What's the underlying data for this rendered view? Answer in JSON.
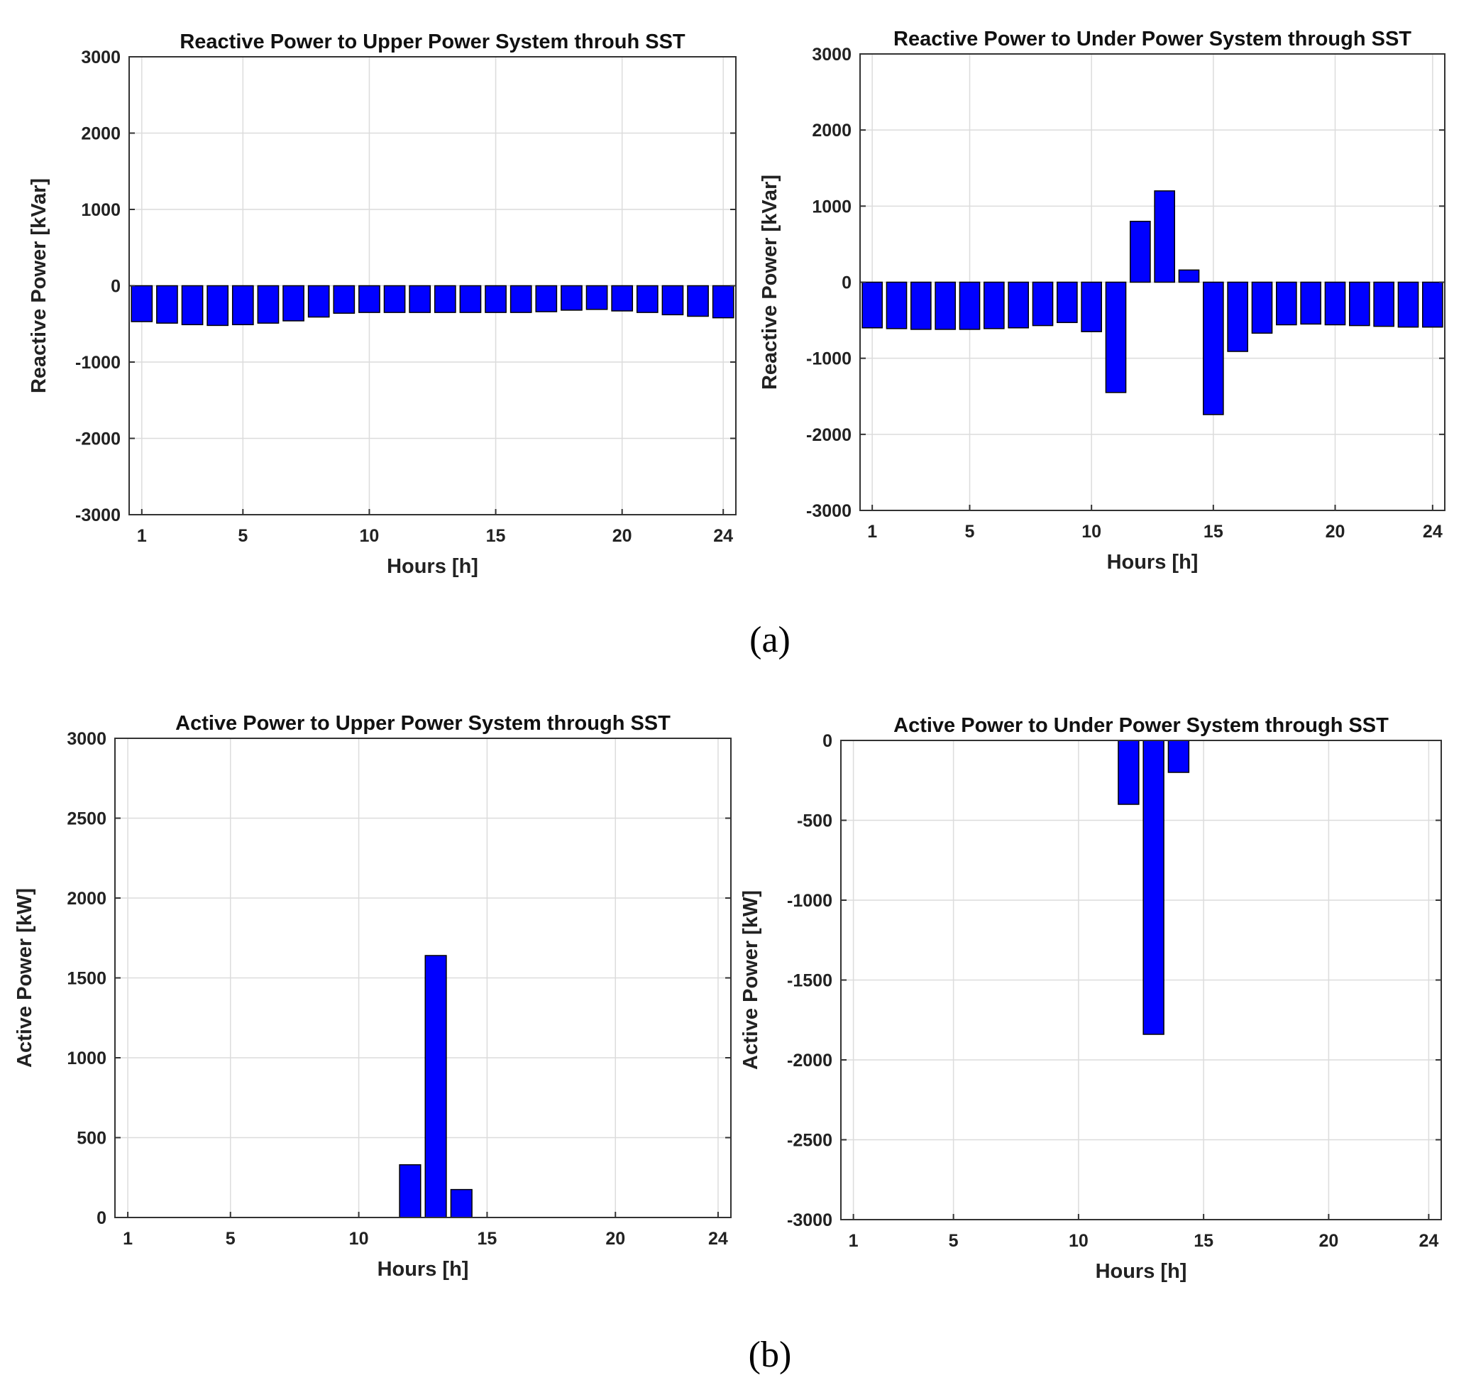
{
  "figure": {
    "captions": [
      "(a)",
      "(b)"
    ],
    "bar_color": "#0000ff"
  },
  "chart_data": [
    {
      "type": "bar",
      "title": "Reactive Power to Upper Power System throuh SST",
      "xlabel": "Hours [h]",
      "ylabel": "Reactive Power [kVar]",
      "categories": [
        1,
        2,
        3,
        4,
        5,
        6,
        7,
        8,
        9,
        10,
        11,
        12,
        13,
        14,
        15,
        16,
        17,
        18,
        19,
        20,
        21,
        22,
        23,
        24
      ],
      "values": [
        -470,
        -490,
        -510,
        -520,
        -510,
        -490,
        -460,
        -410,
        -360,
        -350,
        -350,
        -350,
        -350,
        -350,
        -350,
        -350,
        -340,
        -320,
        -310,
        -330,
        -350,
        -380,
        -400,
        -420
      ],
      "xticks": [
        1,
        5,
        10,
        15,
        20,
        24
      ],
      "yticks": [
        -3000,
        -2000,
        -1000,
        0,
        1000,
        2000,
        3000
      ],
      "ylim": [
        -3000,
        3000
      ],
      "xlim": [
        0.5,
        24.5
      ],
      "grid": true
    },
    {
      "type": "bar",
      "title": "Reactive Power to Under Power System through SST",
      "xlabel": "Hours [h]",
      "ylabel": "Reactive Power [kVar]",
      "categories": [
        1,
        2,
        3,
        4,
        5,
        6,
        7,
        8,
        9,
        10,
        11,
        12,
        13,
        14,
        15,
        16,
        17,
        18,
        19,
        20,
        21,
        22,
        23,
        24
      ],
      "values": [
        -600,
        -610,
        -620,
        -620,
        -620,
        -610,
        -600,
        -570,
        -530,
        -650,
        -1450,
        800,
        1200,
        160,
        -1740,
        -910,
        -670,
        -560,
        -550,
        -560,
        -570,
        -580,
        -590,
        -590
      ],
      "xticks": [
        1,
        5,
        10,
        15,
        20,
        24
      ],
      "yticks": [
        -3000,
        -2000,
        -1000,
        0,
        1000,
        2000,
        3000
      ],
      "ylim": [
        -3000,
        3000
      ],
      "xlim": [
        0.5,
        24.5
      ],
      "grid": true
    },
    {
      "type": "bar",
      "title": "Active Power to Upper Power System through SST",
      "xlabel": "Hours [h]",
      "ylabel": "Active Power [kW]",
      "categories": [
        1,
        2,
        3,
        4,
        5,
        6,
        7,
        8,
        9,
        10,
        11,
        12,
        13,
        14,
        15,
        16,
        17,
        18,
        19,
        20,
        21,
        22,
        23,
        24
      ],
      "values": [
        0,
        0,
        0,
        0,
        0,
        0,
        0,
        0,
        0,
        0,
        0,
        330,
        1640,
        175,
        0,
        0,
        0,
        0,
        0,
        0,
        0,
        0,
        0,
        0
      ],
      "xticks": [
        1,
        5,
        10,
        15,
        20,
        24
      ],
      "yticks": [
        0,
        500,
        1000,
        1500,
        2000,
        2500,
        3000
      ],
      "ylim": [
        0,
        3000
      ],
      "xlim": [
        0.5,
        24.5
      ],
      "grid": true
    },
    {
      "type": "bar",
      "title": "Active Power to Under Power System through SST",
      "xlabel": "Hours [h]",
      "ylabel": "Active Power [kW]",
      "categories": [
        1,
        2,
        3,
        4,
        5,
        6,
        7,
        8,
        9,
        10,
        11,
        12,
        13,
        14,
        15,
        16,
        17,
        18,
        19,
        20,
        21,
        22,
        23,
        24
      ],
      "values": [
        0,
        0,
        0,
        0,
        0,
        0,
        0,
        0,
        0,
        0,
        0,
        -400,
        -1840,
        -200,
        0,
        0,
        0,
        0,
        0,
        0,
        0,
        0,
        0,
        0
      ],
      "xticks": [
        1,
        5,
        10,
        15,
        20,
        24
      ],
      "yticks": [
        -3000,
        -2500,
        -2000,
        -1500,
        -1000,
        -500,
        0
      ],
      "ylim": [
        -3000,
        0
      ],
      "xlim": [
        0.5,
        24.5
      ],
      "grid": true
    }
  ]
}
